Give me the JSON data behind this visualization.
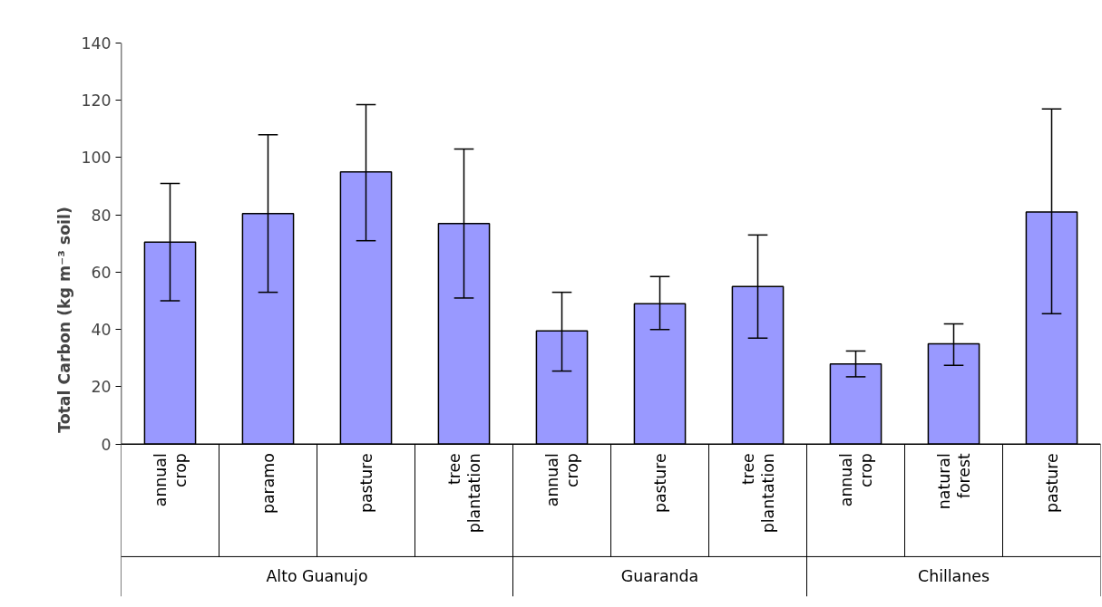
{
  "chart_data": {
    "type": "bar",
    "ylabel": "Total Carbon (kg m⁻³ soil)",
    "categories": [
      "annual crop",
      "paramo",
      "pasture",
      "tree plantation",
      "annual crop",
      "pasture",
      "tree plantation",
      "annual crop",
      "natural forest",
      "pasture"
    ],
    "values": [
      70.5,
      80.5,
      95,
      77,
      39.5,
      49,
      55,
      28,
      35,
      81
    ],
    "errors": [
      [
        50,
        91
      ],
      [
        53,
        108
      ],
      [
        71,
        118.5
      ],
      [
        51,
        103
      ],
      [
        25.5,
        53
      ],
      [
        40,
        58.5
      ],
      [
        37,
        73
      ],
      [
        23.5,
        32.5
      ],
      [
        27.5,
        42
      ],
      [
        45.5,
        117
      ]
    ],
    "color": "#9999ff",
    "ylim": [
      0,
      140
    ],
    "yticks": [
      0,
      20,
      40,
      60,
      80,
      100,
      120,
      140
    ],
    "annotations": [
      "Alto Guanujo",
      "Guaranda",
      "Chillanes"
    ]
  }
}
